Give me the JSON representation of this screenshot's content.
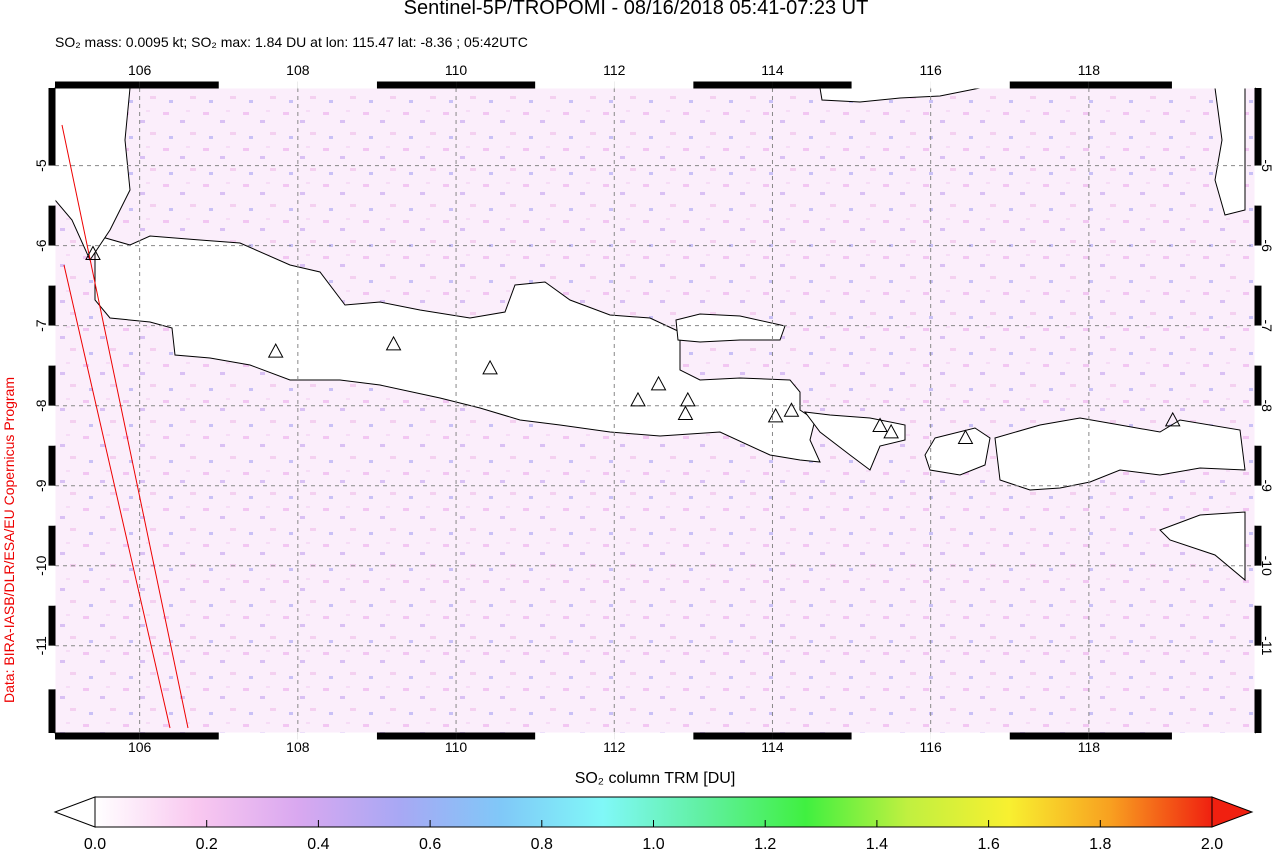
{
  "chart_data": {
    "type": "map",
    "title": "Sentinel-5P/TROPOMI - 08/16/2018 05:41-07:23 UT",
    "subtitle": "SO₂ mass: 0.0095 kt; SO₂ max: 1.84 DU at lon: 115.47 lat: -8.36 ; 05:42UTC",
    "source": "Data: BIRA-IASB/DLR/ESA/EU Copernicus Program",
    "colorbar_label": "SO₂ column TRM [DU]",
    "xlim": [
      104.93,
      120.1
    ],
    "ylim": [
      -12.09,
      -4.03
    ],
    "xticks": [
      106,
      108,
      110,
      112,
      114,
      116,
      118
    ],
    "yticks": [
      -5,
      -6,
      -7,
      -8,
      -9,
      -10,
      -11
    ],
    "grid": true,
    "colorbar_lim": [
      0,
      2
    ],
    "colorbar_ticks": [
      {
        "value": 0,
        "label": "0.0"
      },
      {
        "value": 0.2,
        "label": "0.2"
      },
      {
        "value": 0.4,
        "label": "0.4"
      },
      {
        "value": 0.6,
        "label": "0.6"
      },
      {
        "value": 0.8,
        "label": "0.8"
      },
      {
        "value": 1,
        "label": "1.0"
      },
      {
        "value": 1.2,
        "label": "1.2"
      },
      {
        "value": 1.4,
        "label": "1.4"
      },
      {
        "value": 1.6,
        "label": "1.6"
      },
      {
        "value": 1.8,
        "label": "1.8"
      },
      {
        "value": 2,
        "label": "2.0"
      }
    ],
    "colorbar_colors": [
      "#ffffff",
      "#f9c8f0",
      "#d9a8f0",
      "#a8a8f4",
      "#80c8f8",
      "#80f8f8",
      "#60f0a0",
      "#40f040",
      "#c0f040",
      "#f8f030",
      "#f8a020",
      "#f02010"
    ],
    "volcanoes": {
      "x": [
        107.72,
        109.21,
        110.43,
        112.3,
        112.56,
        112.93,
        112.9,
        114.04,
        114.24,
        115.36,
        115.5,
        116.44,
        119.06,
        105.41
      ],
      "y": [
        -7.33,
        -7.24,
        -7.54,
        -7.94,
        -7.74,
        -7.94,
        -8.11,
        -8.14,
        -8.07,
        -8.26,
        -8.34,
        -8.41,
        -8.19,
        -6.11
      ]
    }
  }
}
